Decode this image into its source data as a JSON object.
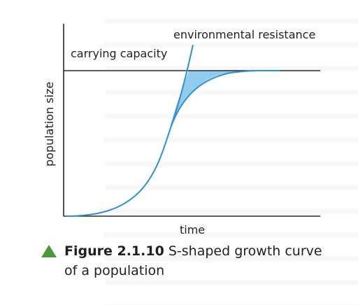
{
  "labels": {
    "environmental_resistance": "environmental resistance",
    "carrying_capacity": "carrying capacity",
    "y_axis": "population size",
    "x_axis": "time"
  },
  "caption": {
    "figure_number": "Figure 2.1.10",
    "text": "S-shaped growth curve of a population"
  },
  "colors": {
    "curve": "#2f8fd1",
    "shaded_region": "#7fc2ea",
    "axes": "#2a2a2a",
    "capacity_line": "#2a2a2a",
    "caption_marker": "#4a9a3a"
  }
}
